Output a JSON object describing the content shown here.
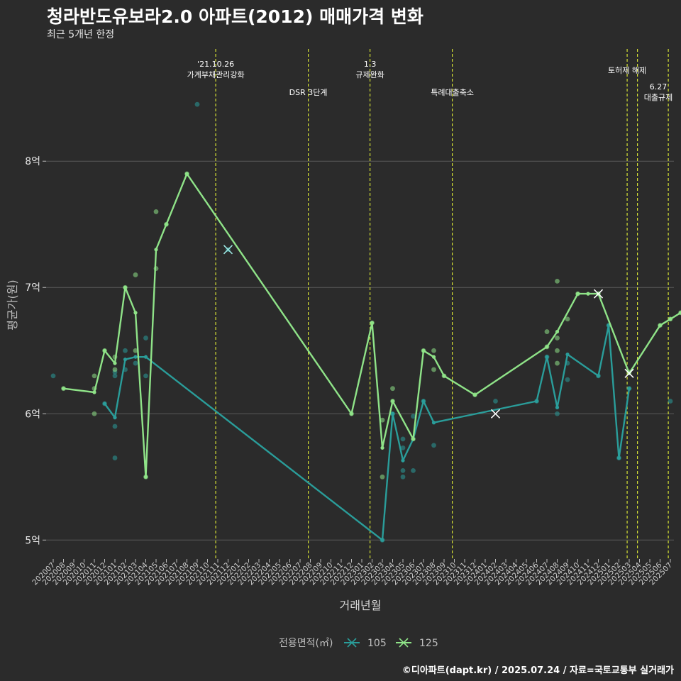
{
  "title": "청라반도유보라2.0 아파트(2012) 매매가격 변화",
  "subtitle": "최근 5개년 한정",
  "caption": "©디아파트(dapt.kr) / 2025.07.24 / 자료=국토교통부 실거래가",
  "colors": {
    "background": "#2b2b2b",
    "s105": "#2a9d9a",
    "s125": "#8fe388",
    "vline": "#d4e034",
    "grid": "#5a5a5a"
  },
  "chart_data": {
    "type": "line",
    "xlabel": "거래년월",
    "ylabel": "평균가(원)",
    "ylim": [
      4.85,
      8.9
    ],
    "yticks": [
      5,
      6,
      7,
      8
    ],
    "ytick_labels": [
      "5억",
      "6억",
      "7억",
      "8억"
    ],
    "categories": [
      "202007",
      "202008",
      "202009",
      "202010",
      "202011",
      "202012",
      "202101",
      "202102",
      "202103",
      "202104",
      "202105",
      "202106",
      "202107",
      "202108",
      "202109",
      "202110",
      "202111",
      "202112",
      "202201",
      "202202",
      "202203",
      "202204",
      "202205",
      "202206",
      "202207",
      "202208",
      "202209",
      "202210",
      "202211",
      "202212",
      "202301",
      "202302",
      "202303",
      "202304",
      "202305",
      "202306",
      "202307",
      "202308",
      "202309",
      "202310",
      "202311",
      "202312",
      "202401",
      "202402",
      "202403",
      "202404",
      "202405",
      "202406",
      "202407",
      "202408",
      "202409",
      "202410",
      "202411",
      "202412",
      "202501",
      "202502",
      "202503",
      "202504",
      "202505",
      "202506",
      "202507"
    ],
    "legend_title": "전용면적(㎡)",
    "series": [
      {
        "name": "105",
        "color": "#2a9d9a",
        "line": [
          [
            5,
            6.08
          ],
          [
            6,
            5.97
          ],
          [
            7,
            6.43
          ],
          [
            8,
            6.45
          ],
          [
            9,
            6.45
          ],
          [
            32,
            5.0
          ],
          [
            33,
            6.0
          ],
          [
            34,
            5.63
          ],
          [
            35,
            5.8
          ],
          [
            36,
            6.1
          ],
          [
            37,
            5.93
          ],
          [
            47,
            6.1
          ],
          [
            48,
            6.45
          ],
          [
            49,
            6.05
          ],
          [
            50,
            6.47
          ],
          [
            53,
            6.3
          ],
          [
            54,
            6.7
          ],
          [
            55,
            5.65
          ],
          [
            56,
            6.2
          ]
        ],
        "points": [
          [
            0,
            6.3
          ],
          [
            5,
            6.08
          ],
          [
            6,
            5.9
          ],
          [
            6,
            6.3
          ],
          [
            6,
            5.65
          ],
          [
            6,
            6.33
          ],
          [
            7,
            6.5
          ],
          [
            7,
            6.35
          ],
          [
            8,
            6.4
          ],
          [
            9,
            6.6
          ],
          [
            9,
            6.3
          ],
          [
            14,
            8.45
          ],
          [
            17,
            7.3
          ],
          [
            32,
            5.0
          ],
          [
            33,
            6.0
          ],
          [
            34,
            5.8
          ],
          [
            34,
            5.73
          ],
          [
            34,
            5.55
          ],
          [
            34,
            5.5
          ],
          [
            35,
            5.55
          ],
          [
            35,
            5.98
          ],
          [
            36,
            6.1
          ],
          [
            37,
            5.75
          ],
          [
            43,
            6.1
          ],
          [
            47,
            6.1
          ],
          [
            48,
            6.45
          ],
          [
            49,
            6.0
          ],
          [
            50,
            6.4
          ],
          [
            50,
            6.27
          ],
          [
            53,
            6.3
          ],
          [
            54,
            6.7
          ],
          [
            55,
            5.65
          ],
          [
            56,
            6.2
          ],
          [
            60,
            6.1
          ]
        ],
        "x_markers": [
          [
            17,
            7.3
          ]
        ]
      },
      {
        "name": "125",
        "color": "#8fe388",
        "line": [
          [
            1,
            6.2
          ],
          [
            4,
            6.17
          ],
          [
            5,
            6.5
          ],
          [
            6,
            6.4
          ],
          [
            7,
            7.0
          ],
          [
            8,
            6.8
          ],
          [
            9,
            5.5
          ],
          [
            10,
            7.3
          ],
          [
            11,
            7.5
          ],
          [
            13,
            7.9
          ],
          [
            29,
            6.0
          ],
          [
            31,
            6.72
          ],
          [
            32,
            5.73
          ],
          [
            33,
            6.1
          ],
          [
            35,
            5.8
          ],
          [
            36,
            6.5
          ],
          [
            37,
            6.45
          ],
          [
            38,
            6.3
          ],
          [
            41,
            6.15
          ],
          [
            48,
            6.53
          ],
          [
            49,
            6.65
          ],
          [
            51,
            6.95
          ],
          [
            52,
            6.95
          ],
          [
            53,
            6.95
          ],
          [
            56,
            6.32
          ],
          [
            59,
            6.7
          ],
          [
            60,
            6.75
          ],
          [
            61,
            6.8
          ]
        ],
        "points": [
          [
            1,
            6.2
          ],
          [
            4,
            6.0
          ],
          [
            4,
            6.3
          ],
          [
            4,
            6.2
          ],
          [
            5,
            6.5
          ],
          [
            6,
            6.45
          ],
          [
            6,
            6.35
          ],
          [
            7,
            7.0
          ],
          [
            8,
            7.1
          ],
          [
            8,
            6.5
          ],
          [
            9,
            5.5
          ],
          [
            10,
            7.15
          ],
          [
            10,
            7.6
          ],
          [
            11,
            7.5
          ],
          [
            13,
            7.9
          ],
          [
            29,
            6.0
          ],
          [
            31,
            6.72
          ],
          [
            32,
            5.95
          ],
          [
            32,
            5.5
          ],
          [
            33,
            6.2
          ],
          [
            33,
            6.1
          ],
          [
            35,
            5.8
          ],
          [
            36,
            6.5
          ],
          [
            37,
            6.5
          ],
          [
            37,
            6.35
          ],
          [
            38,
            6.3
          ],
          [
            41,
            6.15
          ],
          [
            48,
            6.65
          ],
          [
            48,
            6.53
          ],
          [
            49,
            7.05
          ],
          [
            49,
            6.6
          ],
          [
            49,
            6.5
          ],
          [
            49,
            6.4
          ],
          [
            50,
            6.75
          ],
          [
            51,
            6.95
          ],
          [
            53,
            6.95
          ],
          [
            56,
            6.33
          ],
          [
            59,
            6.7
          ],
          [
            60,
            6.75
          ],
          [
            61,
            6.8
          ]
        ],
        "x_markers": [
          [
            43,
            6.0
          ],
          [
            53,
            6.95
          ],
          [
            56,
            6.32
          ]
        ]
      }
    ],
    "events": [
      {
        "x": 15,
        "labels": [
          "'21.10.26",
          "가계부채관리강화"
        ],
        "level": "high"
      },
      {
        "x": 24,
        "labels": [
          "DSR 3단계"
        ],
        "level": "low"
      },
      {
        "x": 30,
        "labels": [
          "1.3",
          "규제완화"
        ],
        "level": "high"
      },
      {
        "x": 38,
        "labels": [
          "특례대출축소"
        ],
        "level": "low"
      },
      {
        "x": 55,
        "labels": [
          "토허제 해제"
        ],
        "level": "mid"
      },
      {
        "x": 56,
        "labels": [],
        "level": "none"
      },
      {
        "x": 59,
        "labels": [
          "6.27",
          "대출규제"
        ],
        "level": "right"
      }
    ]
  }
}
